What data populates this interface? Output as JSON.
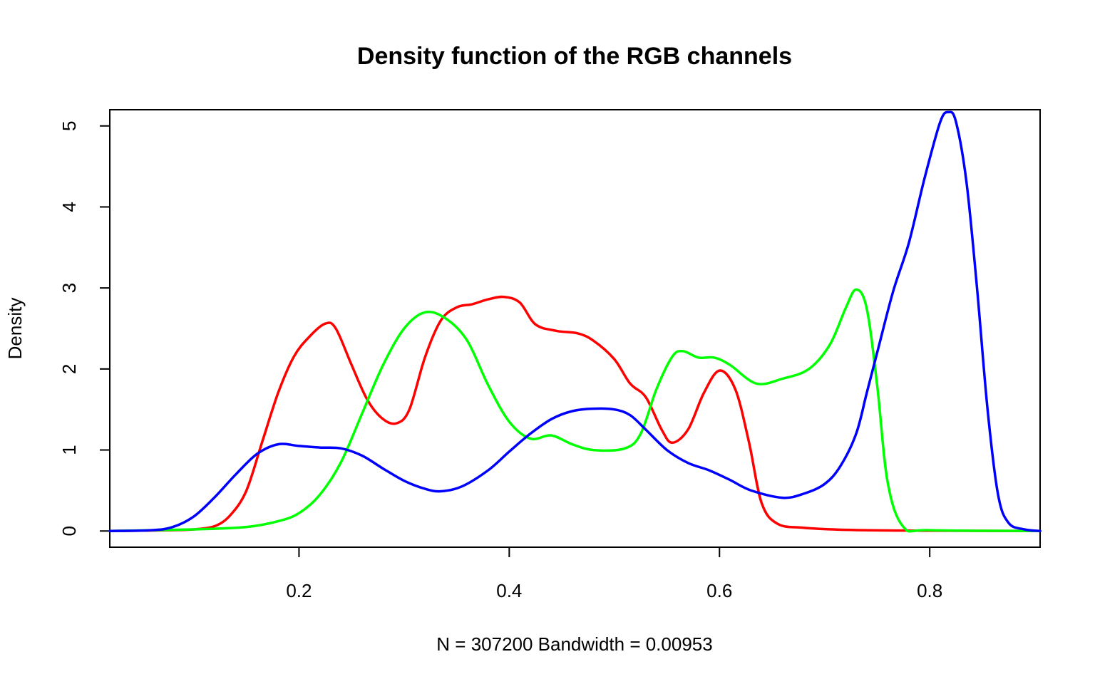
{
  "chart_data": {
    "type": "line",
    "title": "Density function of the RGB channels",
    "xlabel": "N = 307200   Bandwidth = 0.00953",
    "ylabel": "Density",
    "xlim": [
      0.02,
      0.905
    ],
    "ylim": [
      -0.2,
      5.2
    ],
    "x_ticks": [
      0.2,
      0.4,
      0.6,
      0.8
    ],
    "x_tick_labels": [
      "0.2",
      "0.4",
      "0.6",
      "0.8"
    ],
    "y_ticks": [
      0,
      1,
      2,
      3,
      4,
      5
    ],
    "y_tick_labels": [
      "0",
      "1",
      "2",
      "3",
      "4",
      "5"
    ],
    "grid": false,
    "legend": "none",
    "series": [
      {
        "color": "#ff0000",
        "points": [
          [
            0.02,
            0.0
          ],
          [
            0.08,
            0.01
          ],
          [
            0.1,
            0.02
          ],
          [
            0.12,
            0.06
          ],
          [
            0.135,
            0.2
          ],
          [
            0.15,
            0.5
          ],
          [
            0.165,
            1.1
          ],
          [
            0.18,
            1.7
          ],
          [
            0.195,
            2.15
          ],
          [
            0.21,
            2.4
          ],
          [
            0.225,
            2.56
          ],
          [
            0.235,
            2.5
          ],
          [
            0.25,
            2.05
          ],
          [
            0.265,
            1.62
          ],
          [
            0.28,
            1.38
          ],
          [
            0.293,
            1.33
          ],
          [
            0.305,
            1.5
          ],
          [
            0.32,
            2.15
          ],
          [
            0.335,
            2.6
          ],
          [
            0.35,
            2.76
          ],
          [
            0.365,
            2.8
          ],
          [
            0.38,
            2.86
          ],
          [
            0.395,
            2.89
          ],
          [
            0.41,
            2.82
          ],
          [
            0.425,
            2.55
          ],
          [
            0.445,
            2.47
          ],
          [
            0.465,
            2.44
          ],
          [
            0.48,
            2.35
          ],
          [
            0.5,
            2.12
          ],
          [
            0.515,
            1.82
          ],
          [
            0.53,
            1.65
          ],
          [
            0.545,
            1.25
          ],
          [
            0.555,
            1.09
          ],
          [
            0.57,
            1.25
          ],
          [
            0.585,
            1.7
          ],
          [
            0.6,
            1.98
          ],
          [
            0.615,
            1.75
          ],
          [
            0.628,
            1.1
          ],
          [
            0.64,
            0.35
          ],
          [
            0.655,
            0.09
          ],
          [
            0.68,
            0.04
          ],
          [
            0.72,
            0.015
          ],
          [
            0.78,
            0.005
          ],
          [
            0.905,
            0.0
          ]
        ]
      },
      {
        "color": "#00ff00",
        "points": [
          [
            0.02,
            0.0
          ],
          [
            0.1,
            0.02
          ],
          [
            0.15,
            0.05
          ],
          [
            0.18,
            0.12
          ],
          [
            0.2,
            0.22
          ],
          [
            0.22,
            0.45
          ],
          [
            0.24,
            0.85
          ],
          [
            0.26,
            1.45
          ],
          [
            0.28,
            2.05
          ],
          [
            0.3,
            2.5
          ],
          [
            0.32,
            2.7
          ],
          [
            0.34,
            2.62
          ],
          [
            0.36,
            2.35
          ],
          [
            0.38,
            1.8
          ],
          [
            0.4,
            1.35
          ],
          [
            0.42,
            1.14
          ],
          [
            0.44,
            1.18
          ],
          [
            0.46,
            1.07
          ],
          [
            0.48,
            1.0
          ],
          [
            0.51,
            1.02
          ],
          [
            0.525,
            1.2
          ],
          [
            0.54,
            1.75
          ],
          [
            0.555,
            2.15
          ],
          [
            0.565,
            2.22
          ],
          [
            0.58,
            2.14
          ],
          [
            0.595,
            2.14
          ],
          [
            0.61,
            2.05
          ],
          [
            0.635,
            1.82
          ],
          [
            0.66,
            1.88
          ],
          [
            0.685,
            2.0
          ],
          [
            0.705,
            2.3
          ],
          [
            0.72,
            2.75
          ],
          [
            0.73,
            2.98
          ],
          [
            0.74,
            2.75
          ],
          [
            0.75,
            1.8
          ],
          [
            0.76,
            0.6
          ],
          [
            0.775,
            0.05
          ],
          [
            0.8,
            0.01
          ],
          [
            0.905,
            0.0
          ]
        ]
      },
      {
        "color": "#0000ff",
        "points": [
          [
            0.02,
            0.0
          ],
          [
            0.06,
            0.01
          ],
          [
            0.08,
            0.05
          ],
          [
            0.1,
            0.18
          ],
          [
            0.12,
            0.42
          ],
          [
            0.14,
            0.7
          ],
          [
            0.16,
            0.95
          ],
          [
            0.18,
            1.07
          ],
          [
            0.2,
            1.05
          ],
          [
            0.22,
            1.03
          ],
          [
            0.24,
            1.02
          ],
          [
            0.26,
            0.93
          ],
          [
            0.28,
            0.77
          ],
          [
            0.3,
            0.62
          ],
          [
            0.32,
            0.52
          ],
          [
            0.335,
            0.49
          ],
          [
            0.355,
            0.55
          ],
          [
            0.38,
            0.75
          ],
          [
            0.4,
            0.98
          ],
          [
            0.42,
            1.2
          ],
          [
            0.44,
            1.38
          ],
          [
            0.46,
            1.48
          ],
          [
            0.48,
            1.51
          ],
          [
            0.5,
            1.5
          ],
          [
            0.515,
            1.43
          ],
          [
            0.53,
            1.25
          ],
          [
            0.55,
            1.0
          ],
          [
            0.57,
            0.84
          ],
          [
            0.59,
            0.75
          ],
          [
            0.61,
            0.63
          ],
          [
            0.63,
            0.5
          ],
          [
            0.66,
            0.41
          ],
          [
            0.68,
            0.46
          ],
          [
            0.7,
            0.58
          ],
          [
            0.715,
            0.8
          ],
          [
            0.73,
            1.2
          ],
          [
            0.74,
            1.7
          ],
          [
            0.75,
            2.2
          ],
          [
            0.765,
            2.95
          ],
          [
            0.78,
            3.55
          ],
          [
            0.795,
            4.35
          ],
          [
            0.81,
            5.05
          ],
          [
            0.818,
            5.17
          ],
          [
            0.825,
            5.05
          ],
          [
            0.835,
            4.3
          ],
          [
            0.845,
            3.0
          ],
          [
            0.855,
            1.5
          ],
          [
            0.865,
            0.45
          ],
          [
            0.875,
            0.1
          ],
          [
            0.89,
            0.02
          ],
          [
            0.905,
            0.0
          ]
        ]
      }
    ]
  }
}
